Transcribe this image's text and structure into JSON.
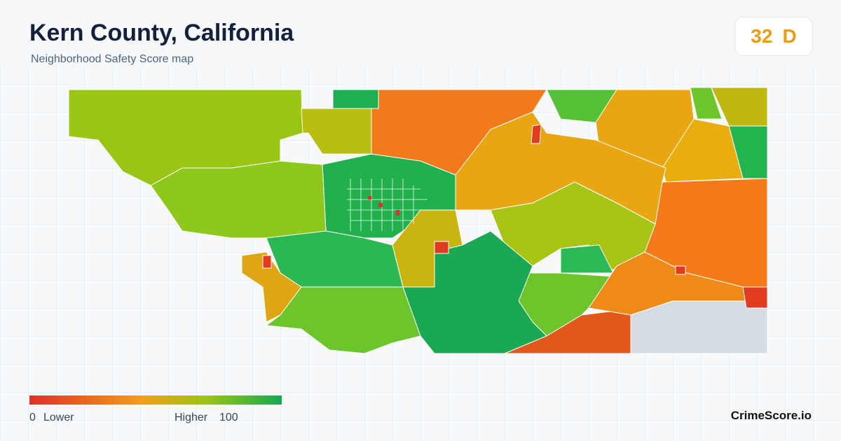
{
  "header": {
    "title": "Kern County, California",
    "subtitle": "Neighborhood Safety Score map"
  },
  "score": {
    "value": 32,
    "grade": "D"
  },
  "legend": {
    "min": 0,
    "min_label": "Lower",
    "max_label": "Higher",
    "max": 100
  },
  "brand": "CrimeScore.io"
}
